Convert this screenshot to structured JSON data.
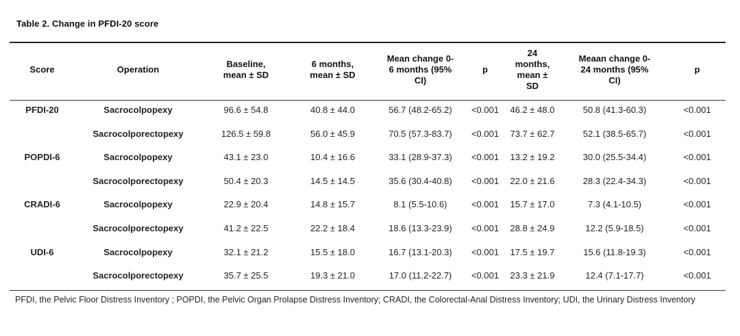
{
  "table": {
    "caption": "Table 2. Change in PFDI-20 score",
    "headers": {
      "score": "Score",
      "operation": "Operation",
      "baseline_l1": "Baseline,",
      "baseline_l2": "mean ± SD",
      "m6_l1": "6 months,",
      "m6_l2": "mean ± SD",
      "mc6_l1": "Mean change 0-",
      "mc6_l2": "6 months (95%",
      "mc6_l3": "CI)",
      "p6": "p",
      "m24_l1": "24",
      "m24_l2": "months,",
      "m24_l3": "mean ±",
      "m24_l4": "SD",
      "mc24_l1": "Meaan change 0-",
      "mc24_l2": "24 months (95%",
      "mc24_l3": "CI)",
      "p24": "p"
    },
    "rows": [
      {
        "score": "PFDI-20",
        "operation": "Sacrocolpopexy",
        "baseline": "96.6 ± 54.8",
        "m6": "40.8 ± 44.0",
        "mc6": "56.7 (48.2-65.2)",
        "p6": "<0.001",
        "m24": "46.2 ± 48.0",
        "mc24": "50.8 (41.3-60.3)",
        "p24": "<0.001"
      },
      {
        "score": "",
        "operation": "Sacrocolporectopexy",
        "baseline": "126.5 ± 59.8",
        "m6": "56.0 ± 45.9",
        "mc6": "70.5 (57.3-83.7)",
        "p6": "<0.001",
        "m24": "73.7 ± 62.7",
        "mc24": "52.1 (38.5-65.7)",
        "p24": "<0.001"
      },
      {
        "score": "POPDI-6",
        "operation": "Sacrocolpopexy",
        "baseline": "43.1 ± 23.0",
        "m6": "10.4 ± 16.6",
        "mc6": "33.1 (28.9-37.3)",
        "p6": "<0.001",
        "m24": "13.2 ± 19.2",
        "mc24": "30.0 (25.5-34.4)",
        "p24": "<0.001"
      },
      {
        "score": "",
        "operation": "Sacrocolporectopexy",
        "baseline": "50.4 ± 20.3",
        "m6": "14.5 ± 14.5",
        "mc6": "35.6 (30.4-40.8)",
        "p6": "<0.001",
        "m24": "22.0 ± 21.6",
        "mc24": "28.3 (22.4-34.3)",
        "p24": "<0.001"
      },
      {
        "score": "CRADI-6",
        "operation": "Sacrocolpopexy",
        "baseline": "22.9 ± 20.4",
        "m6": "14.8 ± 15.7",
        "mc6": "8.1 (5.5-10.6)",
        "p6": "<0.001",
        "m24": "15.7 ± 17.0",
        "mc24": "7.3 (4.1-10.5)",
        "p24": "<0.001"
      },
      {
        "score": "",
        "operation": "Sacrocolporectopexy",
        "baseline": "41.2 ± 22.5",
        "m6": "22.2 ± 18.4",
        "mc6": "18.6 (13.3-23.9)",
        "p6": "<0.001",
        "m24": "28.8 ± 24.9",
        "mc24": "12.2 (5.9-18.5)",
        "p24": "<0.001"
      },
      {
        "score": "UDI-6",
        "operation": "Sacrocolpopexy",
        "baseline": "32.1 ± 21.2",
        "m6": "15.5 ± 18.0",
        "mc6": "16.7 (13.1-20.3)",
        "p6": "<0.001",
        "m24": "17.5 ± 19.7",
        "mc24": "15.6 (11.8-19.3)",
        "p24": "<0.001"
      },
      {
        "score": "",
        "operation": "Sacrocolporectopexy",
        "baseline": "35.7 ± 25.5",
        "m6": "19.3 ± 21.0",
        "mc6": "17.0 (11.2-22.7)",
        "p6": "<0.001",
        "m24": "23.3 ± 21.9",
        "mc24": "12.4 (7.1-17.7)",
        "p24": "<0.001"
      }
    ],
    "footnote": "PFDI, the Pelvic Floor Distress Inventory ; POPDI, the Pelvic Organ Prolapse Distress Inventory; CRADI, the Colorectal-Anal Distress Inventory; UDI, the Urinary Distress Inventory"
  }
}
